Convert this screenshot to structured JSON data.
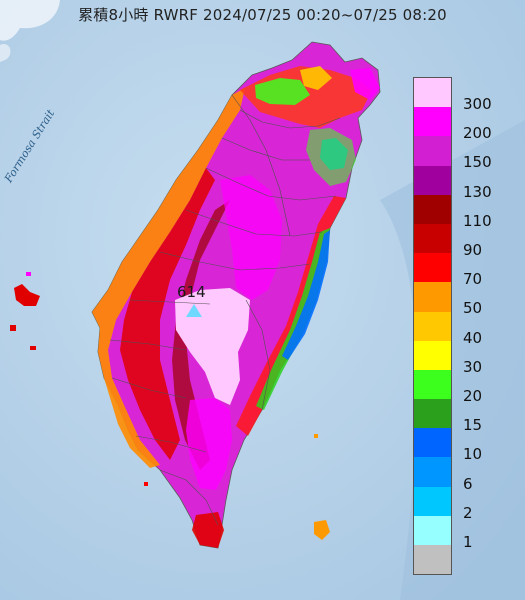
{
  "title": "累積8小時 RWRF 2024/07/25 00:20~07/25 08:20",
  "strait_label": "Formosa Strait",
  "max_marker": {
    "value": "614"
  },
  "legend": {
    "levels": [
      {
        "label": "300",
        "color": "#ffc8ff"
      },
      {
        "label": "200",
        "color": "#ff00ff"
      },
      {
        "label": "150",
        "color": "#d21fd2"
      },
      {
        "label": "130",
        "color": "#a0009e"
      },
      {
        "label": "110",
        "color": "#a00000"
      },
      {
        "label": "90",
        "color": "#c80000"
      },
      {
        "label": "70",
        "color": "#ff0000"
      },
      {
        "label": "50",
        "color": "#ff9900"
      },
      {
        "label": "40",
        "color": "#ffc800"
      },
      {
        "label": "30",
        "color": "#ffff00"
      },
      {
        "label": "20",
        "color": "#3cff1e"
      },
      {
        "label": "15",
        "color": "#2ba01c"
      },
      {
        "label": "10",
        "color": "#0064ff"
      },
      {
        "label": "6",
        "color": "#0096ff"
      },
      {
        "label": "2",
        "color": "#00c8ff"
      },
      {
        "label": "1",
        "color": "#96ffff"
      },
      {
        "label": "",
        "color": "#c0c0c0"
      }
    ]
  }
}
